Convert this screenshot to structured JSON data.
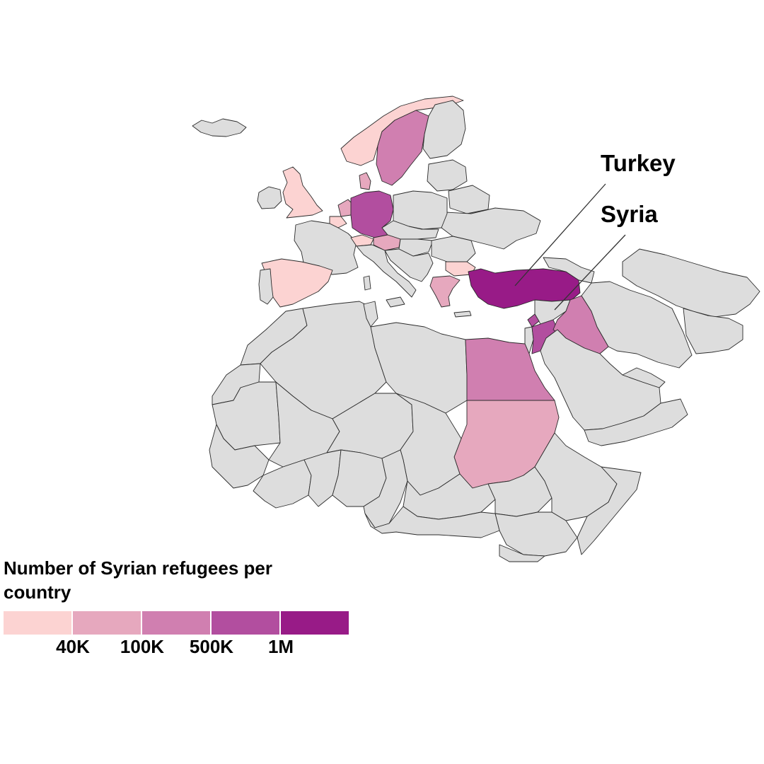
{
  "colors": {
    "land": "#dddddd",
    "border": "#2b2b2b",
    "bins": [
      "#fcd3d2",
      "#e6a8be",
      "#d07fb0",
      "#b24e9f",
      "#981b87"
    ]
  },
  "callouts": [
    {
      "id": "turkey",
      "label": "Turkey"
    },
    {
      "id": "syria",
      "label": "Syria"
    }
  ],
  "legend": {
    "title": "Number of Syrian refugees per country",
    "ticks": [
      "40K",
      "100K",
      "500K",
      "1M"
    ]
  },
  "regions": [
    {
      "name": "Turkey",
      "bin": 4
    },
    {
      "name": "Germany",
      "bin": 3
    },
    {
      "name": "Jordan",
      "bin": 3
    },
    {
      "name": "Lebanon",
      "bin": 3
    },
    {
      "name": "Iraq",
      "bin": 2
    },
    {
      "name": "Egypt",
      "bin": 2
    },
    {
      "name": "Sweden",
      "bin": 2
    },
    {
      "name": "Sudan",
      "bin": 1
    },
    {
      "name": "Austria",
      "bin": 1
    },
    {
      "name": "Greece",
      "bin": 1
    },
    {
      "name": "Netherlands",
      "bin": 1
    },
    {
      "name": "Denmark",
      "bin": 1
    },
    {
      "name": "Spain",
      "bin": 0
    },
    {
      "name": "United Kingdom",
      "bin": 0
    },
    {
      "name": "Norway",
      "bin": 0
    },
    {
      "name": "Bulgaria",
      "bin": 0
    },
    {
      "name": "Belgium",
      "bin": 0
    },
    {
      "name": "Switzerland",
      "bin": 0
    }
  ]
}
